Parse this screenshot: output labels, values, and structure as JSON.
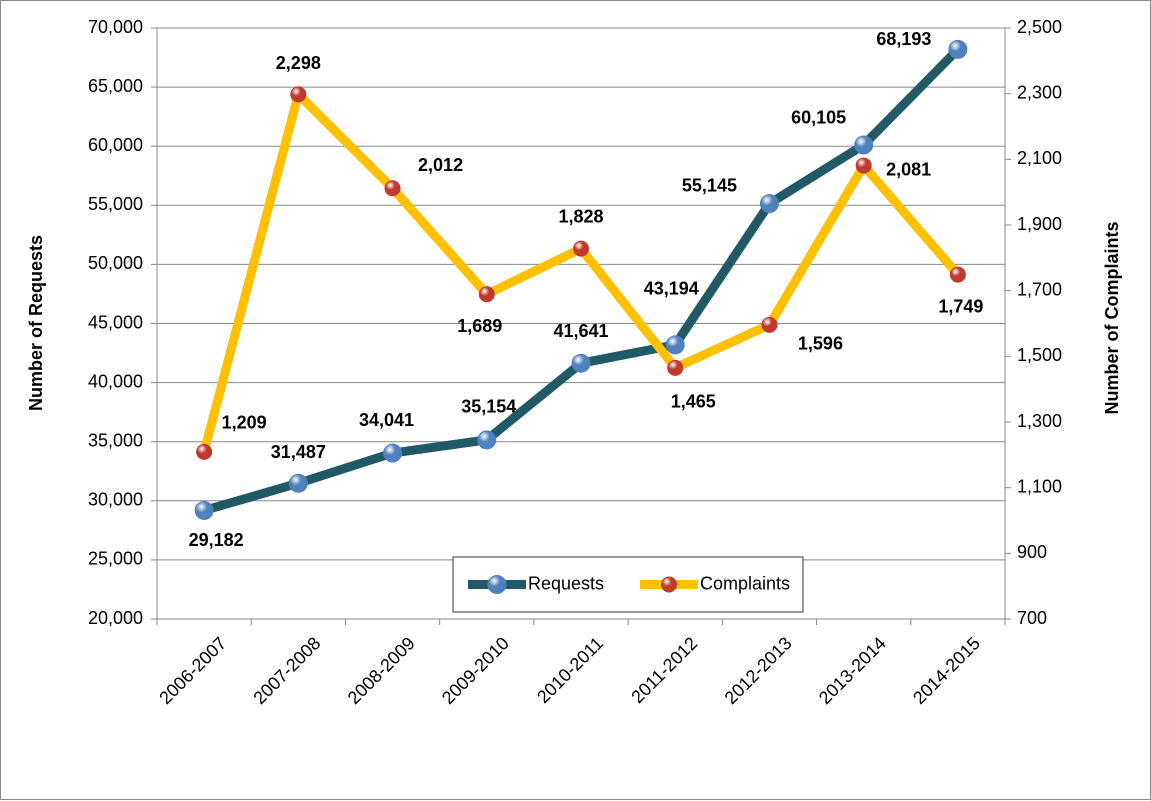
{
  "chart_data": {
    "type": "line",
    "ylabel": "Number of Requests",
    "y2label": "Number of Complaints",
    "categories": [
      "2006-2007",
      "2007-2008",
      "2008-2009",
      "2009-2010",
      "2010-2011",
      "2011-2012",
      "2012-2013",
      "2013-2014",
      "2014-2015"
    ],
    "series": [
      {
        "name": "Requests",
        "color": "#215a66",
        "marker_color": "#4f81bd",
        "values": [
          29182,
          31487,
          34041,
          35154,
          41641,
          43194,
          55145,
          60105,
          68193
        ],
        "value_labels": [
          "29,182",
          "31,487",
          "34,041",
          "35,154",
          "41,641",
          "43,194",
          "55,145",
          "60,105",
          "68,193"
        ]
      },
      {
        "name": "Complaints",
        "color": "#ffc000",
        "marker_color": "#c0392b",
        "axis": "y2",
        "values": [
          1209,
          2298,
          2012,
          1689,
          1828,
          1465,
          1596,
          2081,
          1749
        ],
        "value_labels": [
          "1,209",
          "2,298",
          "2,012",
          "1,689",
          "1,828",
          "1,465",
          "1,596",
          "2,081",
          "1,749"
        ]
      }
    ],
    "ylim": [
      20000,
      70000
    ],
    "yticks": [
      {
        "value": 20000,
        "label": "20,000"
      },
      {
        "value": 25000,
        "label": "25,000"
      },
      {
        "value": 30000,
        "label": "30,000"
      },
      {
        "value": 35000,
        "label": "35,000"
      },
      {
        "value": 40000,
        "label": "40,000"
      },
      {
        "value": 45000,
        "label": "45,000"
      },
      {
        "value": 50000,
        "label": "50,000"
      },
      {
        "value": 55000,
        "label": "55,000"
      },
      {
        "value": 60000,
        "label": "60,000"
      },
      {
        "value": 65000,
        "label": "65,000"
      },
      {
        "value": 70000,
        "label": "70,000"
      }
    ],
    "y2lim": [
      700,
      2500
    ],
    "y2ticks": [
      700,
      900,
      {
        "value": 1100,
        "label": "1,100"
      },
      {
        "value": 1300,
        "label": "1,300"
      },
      {
        "value": 1500,
        "label": "1,500"
      },
      {
        "value": 1700,
        "label": "1,700"
      },
      {
        "value": 1900,
        "label": "1,900"
      },
      {
        "value": 2100,
        "label": "2,100"
      },
      {
        "value": 2300,
        "label": "2,300"
      },
      {
        "value": 2500,
        "label": "2,500"
      }
    ],
    "grid": true,
    "legend": "bottom"
  }
}
